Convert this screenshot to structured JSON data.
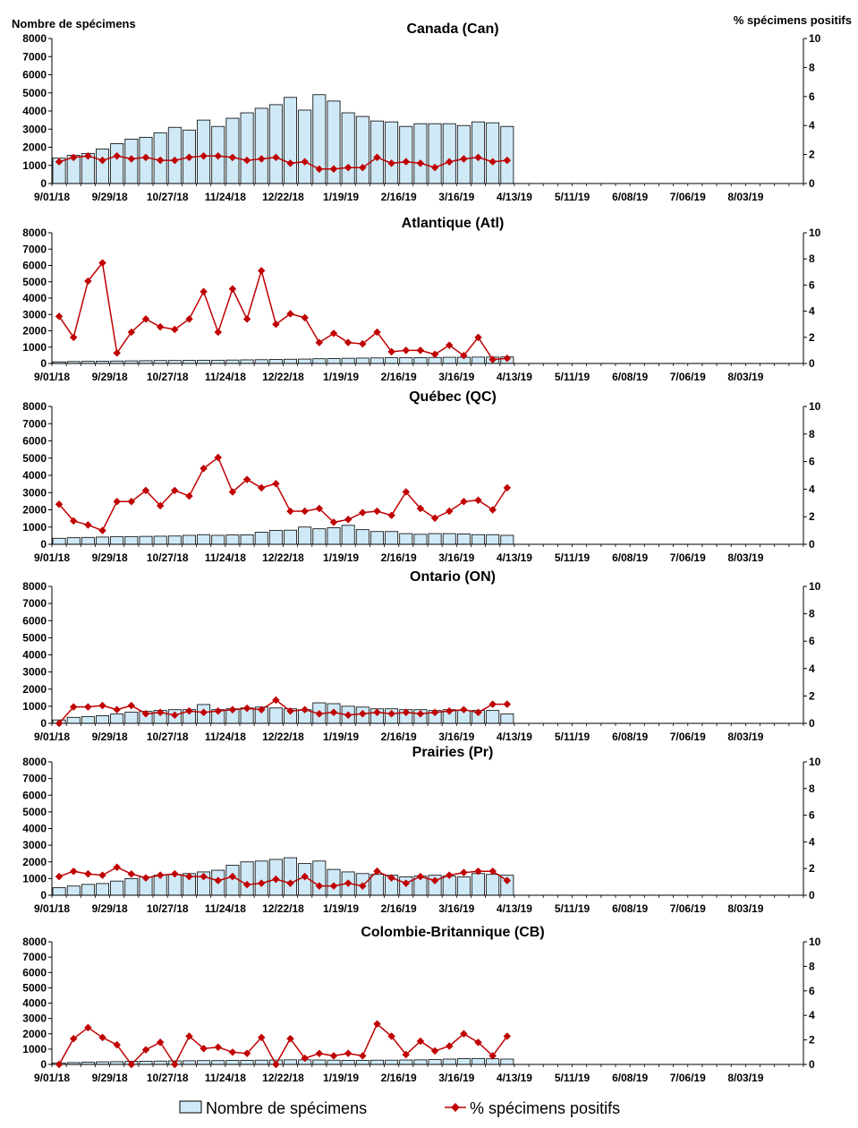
{
  "labels": {
    "left_axis_title": "Nombre de spécimens",
    "right_axis_title": "% spécimens positifs"
  },
  "legend": {
    "bars_label": "Nombre de spécimens",
    "line_label": "% spécimens positifs"
  },
  "colors": {
    "bar_fill": "#cfe9f7",
    "bar_stroke": "#000000",
    "line": "#c00000",
    "axis": "#000000"
  },
  "chart_data": [
    {
      "type": "bar",
      "title": "Canada (Can)",
      "x_tick_labels": [
        "9/01/18",
        "9/29/18",
        "10/27/18",
        "11/24/18",
        "12/22/18",
        "1/19/19",
        "2/16/19",
        "3/16/19",
        "4/13/19",
        "5/11/19",
        "6/08/19",
        "7/06/19",
        "8/03/19"
      ],
      "weeks_per_tick": 4,
      "total_weeks": 52,
      "y_ticks": [
        0,
        1000,
        2000,
        3000,
        4000,
        5000,
        6000,
        7000,
        8000
      ],
      "y2_ticks": [
        0,
        2,
        4,
        6,
        8,
        10
      ],
      "ylim": [
        0,
        8000
      ],
      "y2lim": [
        0,
        10
      ],
      "series": [
        {
          "name": "Nombre de spécimens",
          "axis": "left",
          "values": [
            1400,
            1550,
            1650,
            1900,
            2200,
            2450,
            2550,
            2800,
            3100,
            2950,
            3500,
            3150,
            3600,
            3900,
            4150,
            4350,
            4750,
            4050,
            4900,
            4550,
            3900,
            3700,
            3450,
            3400,
            3150,
            3300,
            3300,
            3300,
            3200,
            3400,
            3350,
            3150
          ]
        },
        {
          "name": "% spécimens positifs",
          "axis": "right",
          "values": [
            1.5,
            1.8,
            1.9,
            1.6,
            1.9,
            1.7,
            1.8,
            1.6,
            1.6,
            1.8,
            1.9,
            1.9,
            1.8,
            1.6,
            1.7,
            1.8,
            1.4,
            1.5,
            1.0,
            1.0,
            1.1,
            1.1,
            1.8,
            1.4,
            1.5,
            1.4,
            1.1,
            1.5,
            1.7,
            1.8,
            1.5,
            1.6
          ]
        }
      ]
    },
    {
      "type": "bar",
      "title": "Atlantique (Atl)",
      "x_tick_labels": [
        "9/01/18",
        "9/29/18",
        "10/27/18",
        "11/24/18",
        "12/22/18",
        "1/19/19",
        "2/16/19",
        "3/16/19",
        "4/13/19",
        "5/11/19",
        "6/08/19",
        "7/06/19",
        "8/03/19"
      ],
      "weeks_per_tick": 4,
      "total_weeks": 52,
      "y_ticks": [
        0,
        1000,
        2000,
        3000,
        4000,
        5000,
        6000,
        7000,
        8000
      ],
      "y2_ticks": [
        0,
        2,
        4,
        6,
        8,
        10
      ],
      "ylim": [
        0,
        8000
      ],
      "y2lim": [
        0,
        10
      ],
      "series": [
        {
          "name": "Nombre de spécimens",
          "axis": "left",
          "values": [
            100,
            120,
            130,
            140,
            150,
            160,
            170,
            180,
            180,
            190,
            200,
            200,
            210,
            220,
            230,
            250,
            260,
            270,
            290,
            300,
            320,
            330,
            340,
            350,
            350,
            360,
            370,
            380,
            380,
            390,
            390,
            400
          ]
        },
        {
          "name": "% spécimens positifs",
          "axis": "right",
          "values": [
            3.6,
            2.0,
            6.3,
            7.7,
            0.8,
            2.4,
            3.4,
            2.8,
            2.6,
            3.4,
            5.5,
            2.4,
            5.7,
            3.4,
            7.1,
            3.0,
            3.8,
            3.5,
            1.6,
            2.3,
            1.6,
            1.5,
            2.4,
            0.9,
            1.0,
            1.0,
            0.7,
            1.4,
            0.6,
            2.0,
            0.3,
            0.4
          ]
        }
      ]
    },
    {
      "type": "bar",
      "title": "Québec (QC)",
      "x_tick_labels": [
        "9/01/18",
        "9/29/18",
        "10/27/18",
        "11/24/18",
        "12/22/18",
        "1/19/19",
        "2/16/19",
        "3/16/19",
        "4/13/19",
        "5/11/19",
        "6/08/19",
        "7/06/19",
        "8/03/19"
      ],
      "weeks_per_tick": 4,
      "total_weeks": 52,
      "y_ticks": [
        0,
        1000,
        2000,
        3000,
        4000,
        5000,
        6000,
        7000,
        8000
      ],
      "y2_ticks": [
        0,
        2,
        4,
        6,
        8,
        10
      ],
      "ylim": [
        0,
        8000
      ],
      "y2lim": [
        0,
        10
      ],
      "series": [
        {
          "name": "Nombre de spécimens",
          "axis": "left",
          "values": [
            350,
            380,
            400,
            420,
            450,
            450,
            460,
            470,
            480,
            520,
            560,
            520,
            540,
            550,
            700,
            800,
            820,
            1000,
            900,
            960,
            1100,
            850,
            740,
            740,
            620,
            580,
            620,
            620,
            600,
            560,
            560,
            520
          ]
        },
        {
          "name": "% spécimens positifs",
          "axis": "right",
          "values": [
            2.9,
            1.7,
            1.4,
            1.0,
            3.1,
            3.1,
            3.9,
            2.8,
            3.9,
            3.5,
            5.5,
            6.3,
            3.8,
            4.7,
            4.1,
            4.4,
            2.4,
            2.4,
            2.6,
            1.6,
            1.8,
            2.3,
            2.4,
            2.1,
            3.8,
            2.6,
            1.9,
            2.4,
            3.1,
            3.2,
            2.5,
            4.1
          ]
        }
      ]
    },
    {
      "type": "bar",
      "title": "Ontario (ON)",
      "x_tick_labels": [
        "9/01/18",
        "9/29/18",
        "10/27/18",
        "11/24/18",
        "12/22/18",
        "1/19/19",
        "2/16/19",
        "3/16/19",
        "4/13/19",
        "5/11/19",
        "6/08/19",
        "7/06/19",
        "8/03/19"
      ],
      "weeks_per_tick": 4,
      "total_weeks": 52,
      "y_ticks": [
        0,
        1000,
        2000,
        3000,
        4000,
        5000,
        6000,
        7000,
        8000
      ],
      "y2_ticks": [
        0,
        2,
        4,
        6,
        8,
        10
      ],
      "ylim": [
        0,
        8000
      ],
      "y2lim": [
        0,
        10
      ],
      "series": [
        {
          "name": "Nombre de spécimens",
          "axis": "left",
          "values": [
            200,
            350,
            400,
            450,
            550,
            650,
            700,
            750,
            800,
            800,
            1100,
            800,
            850,
            900,
            950,
            900,
            850,
            800,
            1200,
            1150,
            1000,
            950,
            850,
            850,
            800,
            800,
            750,
            800,
            750,
            750,
            750,
            550
          ]
        },
        {
          "name": "% spécimens positifs",
          "axis": "right",
          "values": [
            0.0,
            1.2,
            1.2,
            1.3,
            1.0,
            1.3,
            0.7,
            0.8,
            0.6,
            0.9,
            0.8,
            0.9,
            1.0,
            1.1,
            1.0,
            1.7,
            0.9,
            1.0,
            0.7,
            0.8,
            0.6,
            0.7,
            0.8,
            0.7,
            0.8,
            0.7,
            0.8,
            0.9,
            1.0,
            0.8,
            1.4,
            1.4
          ]
        }
      ]
    },
    {
      "type": "bar",
      "title": "Prairies (Pr)",
      "x_tick_labels": [
        "9/01/18",
        "9/29/18",
        "10/27/18",
        "11/24/18",
        "12/22/18",
        "1/19/19",
        "2/16/19",
        "3/16/19",
        "4/13/19",
        "5/11/19",
        "6/08/19",
        "7/06/19",
        "8/03/19"
      ],
      "weeks_per_tick": 4,
      "total_weeks": 52,
      "y_ticks": [
        0,
        1000,
        2000,
        3000,
        4000,
        5000,
        6000,
        7000,
        8000
      ],
      "y2_ticks": [
        0,
        2,
        4,
        6,
        8,
        10
      ],
      "ylim": [
        0,
        8000
      ],
      "y2lim": [
        0,
        10
      ],
      "series": [
        {
          "name": "Nombre de spécimens",
          "axis": "left",
          "values": [
            450,
            550,
            650,
            700,
            850,
            1000,
            1100,
            1200,
            1250,
            1300,
            1400,
            1500,
            1800,
            2000,
            2050,
            2150,
            2250,
            1900,
            2050,
            1550,
            1400,
            1300,
            1250,
            1200,
            1100,
            1150,
            1200,
            1150,
            1100,
            1300,
            1250,
            1200
          ]
        },
        {
          "name": "% spécimens positifs",
          "axis": "right",
          "values": [
            1.4,
            1.8,
            1.6,
            1.5,
            2.1,
            1.6,
            1.3,
            1.5,
            1.6,
            1.4,
            1.4,
            1.1,
            1.4,
            0.8,
            0.9,
            1.2,
            0.9,
            1.4,
            0.7,
            0.7,
            0.9,
            0.7,
            1.8,
            1.3,
            0.9,
            1.4,
            1.1,
            1.5,
            1.7,
            1.8,
            1.8,
            1.1
          ]
        }
      ]
    },
    {
      "type": "bar",
      "title": "Colombie-Britannique (CB)",
      "x_tick_labels": [
        "9/01/18",
        "9/29/18",
        "10/27/18",
        "11/24/18",
        "12/22/18",
        "1/19/19",
        "2/16/19",
        "3/16/19",
        "4/13/19",
        "5/11/19",
        "6/08/19",
        "7/06/19",
        "8/03/19"
      ],
      "weeks_per_tick": 4,
      "total_weeks": 52,
      "y_ticks": [
        0,
        1000,
        2000,
        3000,
        4000,
        5000,
        6000,
        7000,
        8000
      ],
      "y2_ticks": [
        0,
        2,
        4,
        6,
        8,
        10
      ],
      "ylim": [
        0,
        8000
      ],
      "y2lim": [
        0,
        10
      ],
      "series": [
        {
          "name": "Nombre de spécimens",
          "axis": "left",
          "values": [
            100,
            120,
            150,
            170,
            180,
            200,
            210,
            220,
            230,
            240,
            250,
            250,
            260,
            270,
            280,
            290,
            300,
            300,
            290,
            280,
            270,
            270,
            280,
            280,
            290,
            300,
            320,
            350,
            380,
            390,
            370,
            350
          ]
        },
        {
          "name": "% spécimens positifs",
          "axis": "right",
          "values": [
            0.0,
            2.1,
            3.0,
            2.2,
            1.6,
            0.0,
            1.2,
            1.8,
            0.0,
            2.3,
            1.3,
            1.4,
            1.0,
            0.9,
            2.2,
            0.0,
            2.1,
            0.5,
            0.9,
            0.7,
            0.9,
            0.7,
            3.3,
            2.3,
            0.8,
            1.9,
            1.1,
            1.5,
            2.5,
            1.8,
            0.7,
            2.3
          ]
        }
      ]
    }
  ]
}
